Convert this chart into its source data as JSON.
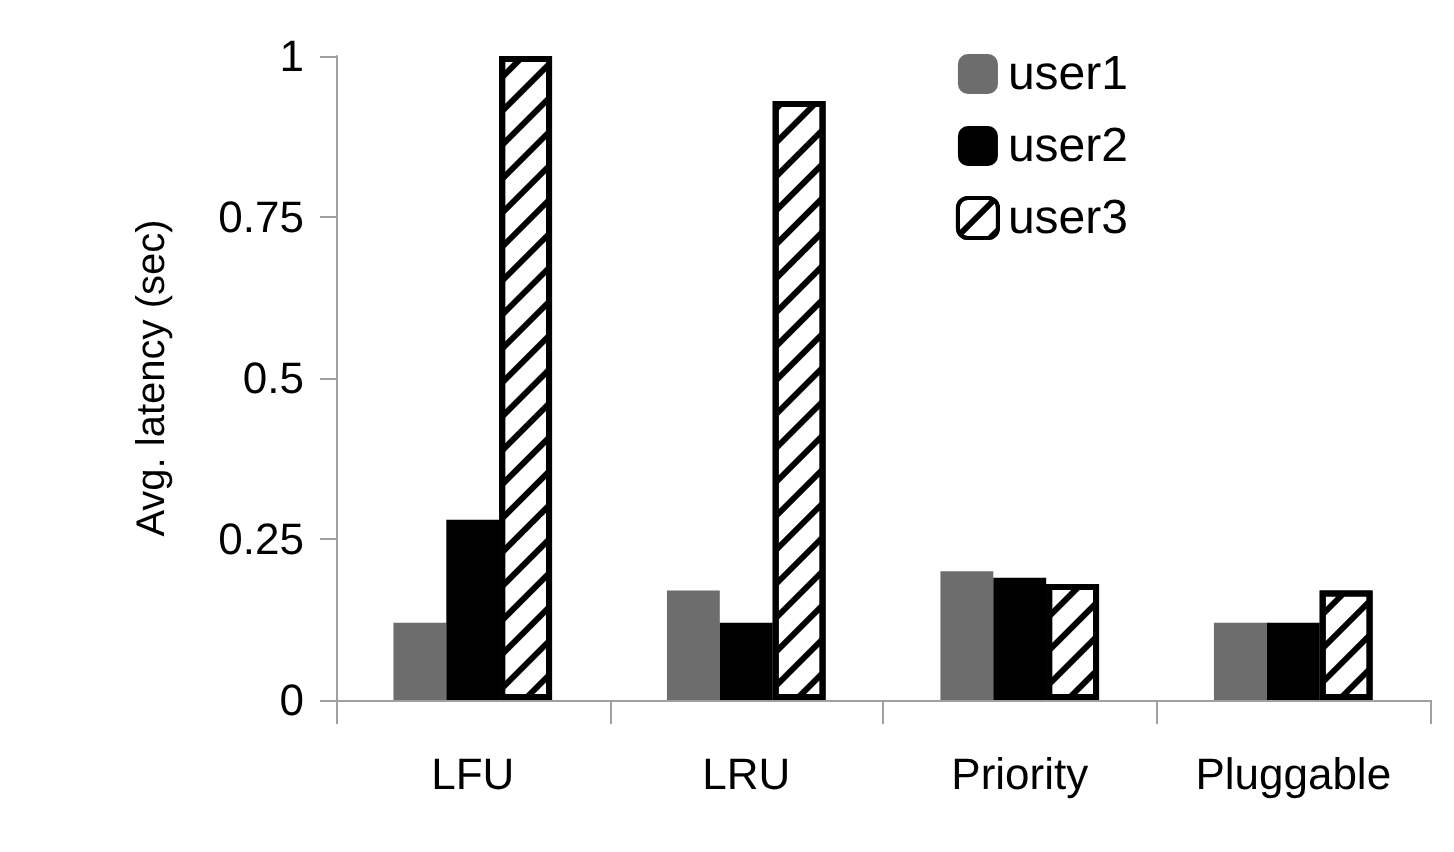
{
  "chart_data": {
    "type": "bar",
    "ylabel": "Avg. latency (sec)",
    "categories": [
      "LFU",
      "LRU",
      "Priority",
      "Pluggable"
    ],
    "series": [
      {
        "name": "user1",
        "color": "#6d6d6d",
        "values": [
          0.12,
          0.17,
          0.2,
          0.12
        ]
      },
      {
        "name": "user2",
        "color": "#000000",
        "values": [
          0.28,
          0.12,
          0.19,
          0.12
        ]
      },
      {
        "name": "user3",
        "color": "#ffffff",
        "values": [
          1.0,
          0.93,
          0.18,
          0.17
        ]
      }
    ],
    "ylim": [
      0,
      1
    ],
    "yticks": [
      0,
      0.25,
      0.5,
      0.75,
      1
    ],
    "grid": false,
    "legend": "top right"
  }
}
